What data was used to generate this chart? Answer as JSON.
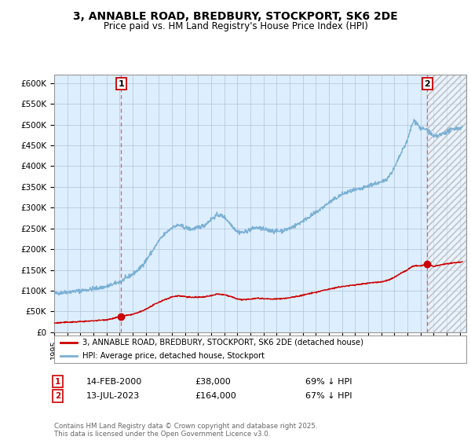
{
  "title": "3, ANNABLE ROAD, BREDBURY, STOCKPORT, SK6 2DE",
  "subtitle": "Price paid vs. HM Land Registry's House Price Index (HPI)",
  "ylim": [
    0,
    620000
  ],
  "xlim_start": 1995.0,
  "xlim_end": 2026.5,
  "background_color": "#ddeeff",
  "grid_color": "#b0c4d8",
  "sale1_date": 2000.12,
  "sale1_price": 38000,
  "sale2_date": 2023.53,
  "sale2_price": 164000,
  "red_line_color": "#cc0000",
  "blue_line_color": "#7ab0d4",
  "dashed_line_color": "#e06060",
  "legend_label1": "3, ANNABLE ROAD, BREDBURY, STOCKPORT, SK6 2DE (detached house)",
  "legend_label2": "HPI: Average price, detached house, Stockport",
  "annotation1_date": "14-FEB-2000",
  "annotation1_price": "£38,000",
  "annotation1_pct": "69% ↓ HPI",
  "annotation2_date": "13-JUL-2023",
  "annotation2_price": "£164,000",
  "annotation2_pct": "67% ↓ HPI",
  "footnote": "Contains HM Land Registry data © Crown copyright and database right 2025.\nThis data is licensed under the Open Government Licence v3.0.",
  "yticks": [
    0,
    50000,
    100000,
    150000,
    200000,
    250000,
    300000,
    350000,
    400000,
    450000,
    500000,
    550000,
    600000
  ],
  "ytick_labels": [
    "£0",
    "£50K",
    "£100K",
    "£150K",
    "£200K",
    "£250K",
    "£300K",
    "£350K",
    "£400K",
    "£450K",
    "£500K",
    "£550K",
    "£600K"
  ]
}
